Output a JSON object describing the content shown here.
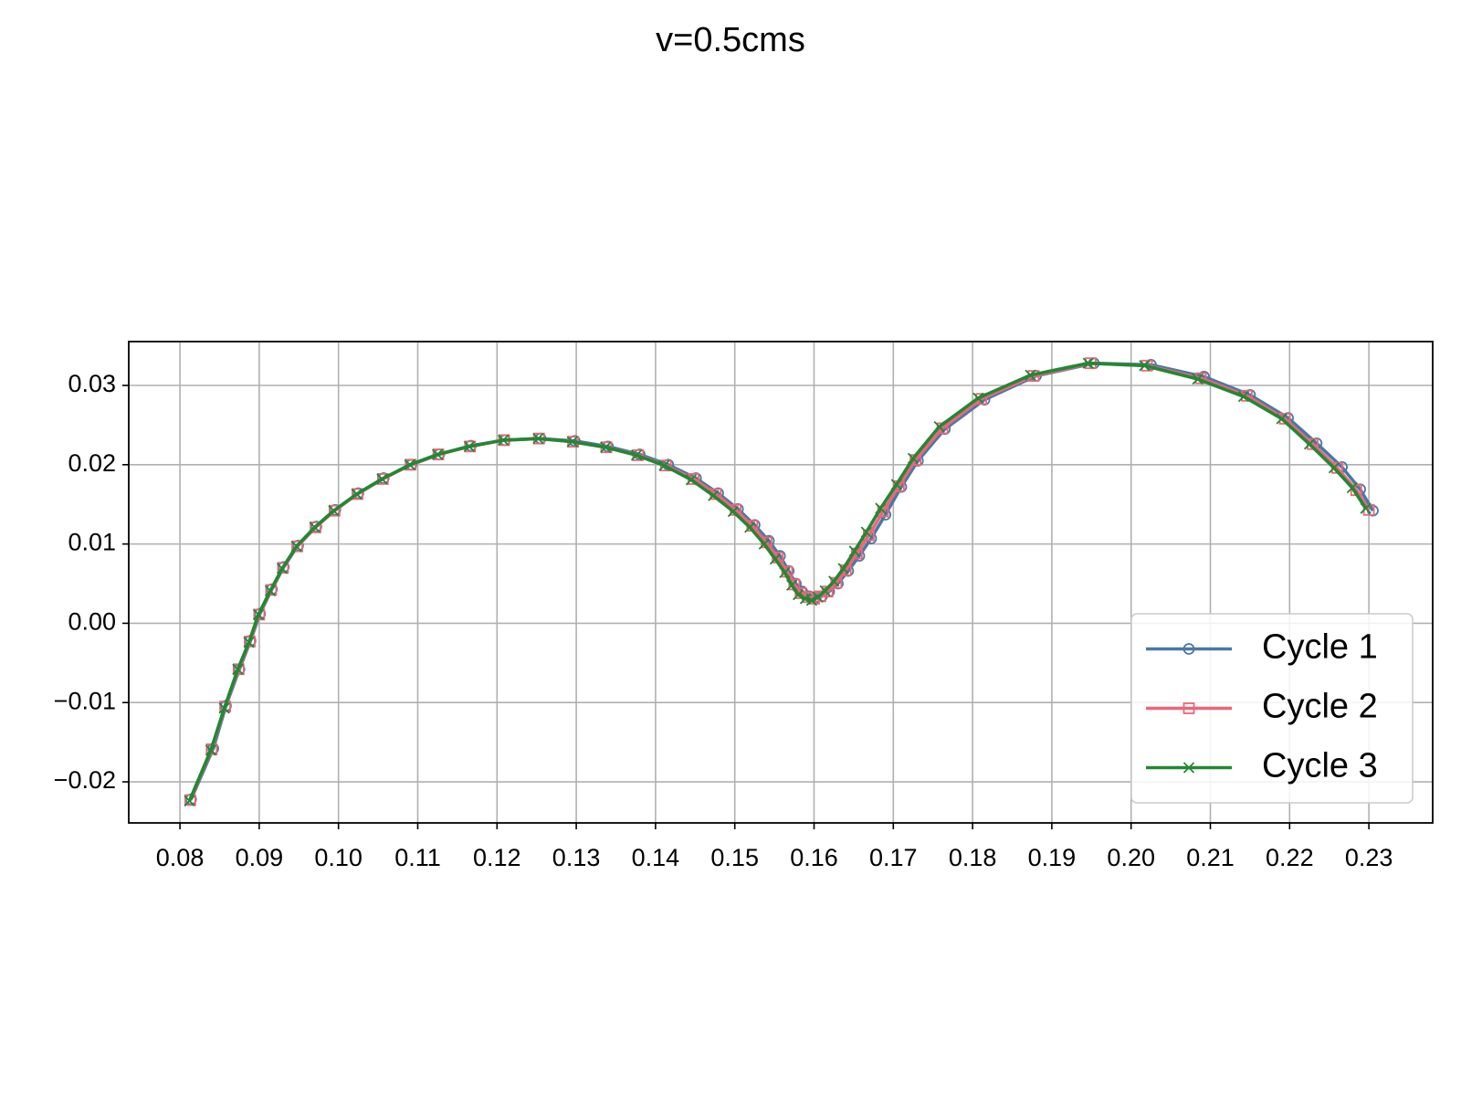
{
  "chart_data": {
    "type": "line",
    "title": "v=0.5cms",
    "grid": true,
    "legend": "lower right",
    "xlim": [
      0.07354,
      0.23805
    ],
    "ylim": [
      -0.02518,
      0.03553
    ],
    "xticks": [
      0.08,
      0.09,
      {
        "value": 0.1,
        "label": "0.10"
      },
      0.11,
      0.12,
      0.13,
      0.14,
      0.15,
      0.16,
      0.17,
      0.18,
      0.19,
      {
        "value": 0.2,
        "label": "0.20"
      },
      0.21,
      0.22,
      0.23
    ],
    "yticks": [
      {
        "value": -0.02,
        "label": "−0.02"
      },
      {
        "value": -0.01,
        "label": "−0.01"
      },
      {
        "value": 0,
        "label": "0.00"
      },
      0.01,
      0.02,
      0.03
    ],
    "series": [
      {
        "name": "Cycle 1",
        "color": "#4a78a8",
        "marker": "o",
        "x": [
          0.0814,
          0.0842,
          0.0858,
          0.0875,
          0.0889,
          0.0901,
          0.0916,
          0.0931,
          0.0949,
          0.0972,
          0.0996,
          0.1025,
          0.1057,
          0.1092,
          0.1127,
          0.1167,
          0.121,
          0.1255,
          0.1298,
          0.134,
          0.138,
          0.1416,
          0.1451,
          0.1479,
          0.1504,
          0.1525,
          0.1543,
          0.1557,
          0.1568,
          0.1577,
          0.1585,
          0.1594,
          0.1602,
          0.161,
          0.1619,
          0.163,
          0.1643,
          0.1657,
          0.1672,
          0.169,
          0.171,
          0.1731,
          0.1765,
          0.1815,
          0.188,
          0.1953,
          0.2025,
          0.2092,
          0.215,
          0.2198,
          0.2234,
          0.2266,
          0.2289,
          0.2305
        ],
        "values": [
          -0.0222,
          -0.0158,
          -0.0104,
          -0.0058,
          -0.0022,
          0.0012,
          0.0043,
          0.0071,
          0.0098,
          0.0122,
          0.0143,
          0.0164,
          0.0183,
          0.02,
          0.0213,
          0.0224,
          0.0231,
          0.0233,
          0.023,
          0.0223,
          0.0213,
          0.02,
          0.0183,
          0.0164,
          0.0144,
          0.0124,
          0.0104,
          0.0085,
          0.0066,
          0.005,
          0.004,
          0.0034,
          0.0032,
          0.0034,
          0.004,
          0.005,
          0.0066,
          0.0085,
          0.0107,
          0.0137,
          0.0172,
          0.0205,
          0.0245,
          0.0282,
          0.0312,
          0.0328,
          0.0326,
          0.0311,
          0.0288,
          0.0259,
          0.0227,
          0.0197,
          0.0169,
          0.0142
        ]
      },
      {
        "name": "Cycle 2",
        "color": "#ec6677",
        "marker": "s",
        "x": [
          0.0813,
          0.084,
          0.0857,
          0.0874,
          0.0888,
          0.09,
          0.0915,
          0.093,
          0.0948,
          0.0971,
          0.0995,
          0.1024,
          0.1056,
          0.1091,
          0.1126,
          0.1166,
          0.1209,
          0.1253,
          0.1296,
          0.1338,
          0.1378,
          0.1413,
          0.1448,
          0.1476,
          0.1501,
          0.1522,
          0.154,
          0.1554,
          0.1566,
          0.1575,
          0.1583,
          0.1592,
          0.16,
          0.1608,
          0.1617,
          0.1628,
          0.164,
          0.1654,
          0.1669,
          0.1687,
          0.1707,
          0.1728,
          0.1762,
          0.1811,
          0.1877,
          0.1949,
          0.202,
          0.2088,
          0.2146,
          0.2194,
          0.2229,
          0.226,
          0.2284,
          0.23
        ],
        "values": [
          -0.0223,
          -0.0159,
          -0.0105,
          -0.0058,
          -0.0023,
          0.0011,
          0.0042,
          0.007,
          0.0097,
          0.0121,
          0.0142,
          0.0163,
          0.0182,
          0.02,
          0.0213,
          0.0223,
          0.0231,
          0.0233,
          0.0229,
          0.0222,
          0.0212,
          0.0199,
          0.0182,
          0.0163,
          0.0143,
          0.0123,
          0.0102,
          0.0083,
          0.0065,
          0.0049,
          0.0038,
          0.0033,
          0.0031,
          0.0034,
          0.004,
          0.0051,
          0.0067,
          0.0088,
          0.0111,
          0.0141,
          0.0173,
          0.0206,
          0.0246,
          0.0283,
          0.0312,
          0.0328,
          0.0325,
          0.0309,
          0.0287,
          0.0258,
          0.0226,
          0.0196,
          0.0168,
          0.0143
        ]
      },
      {
        "name": "Cycle 3",
        "color": "#228833",
        "marker": "x",
        "x": [
          0.0812,
          0.0839,
          0.0856,
          0.0873,
          0.0887,
          0.0899,
          0.0914,
          0.0929,
          0.0947,
          0.097,
          0.0994,
          0.1023,
          0.1055,
          0.109,
          0.1125,
          0.1165,
          0.1208,
          0.1252,
          0.1295,
          0.1337,
          0.1376,
          0.1411,
          0.1445,
          0.1473,
          0.1498,
          0.1519,
          0.1537,
          0.1551,
          0.1563,
          0.1572,
          0.158,
          0.1589,
          0.1597,
          0.1605,
          0.1614,
          0.1625,
          0.1637,
          0.1651,
          0.1666,
          0.1684,
          0.1704,
          0.1725,
          0.1758,
          0.1807,
          0.1873,
          0.1946,
          0.2017,
          0.2084,
          0.2142,
          0.219,
          0.2225,
          0.2256,
          0.2279,
          0.2296
        ],
        "values": [
          -0.0224,
          -0.016,
          -0.0107,
          -0.0058,
          -0.0024,
          0.0011,
          0.0041,
          0.0069,
          0.0097,
          0.0121,
          0.0142,
          0.0163,
          0.0182,
          0.02,
          0.0213,
          0.0223,
          0.0231,
          0.0233,
          0.0229,
          0.0222,
          0.0212,
          0.0199,
          0.0181,
          0.0161,
          0.0141,
          0.0121,
          0.01,
          0.0081,
          0.0064,
          0.0048,
          0.0036,
          0.0031,
          0.0029,
          0.0033,
          0.0041,
          0.0053,
          0.0069,
          0.0091,
          0.0115,
          0.0145,
          0.0175,
          0.0208,
          0.0248,
          0.0284,
          0.0313,
          0.0328,
          0.0325,
          0.0308,
          0.0286,
          0.0258,
          0.0226,
          0.0196,
          0.0171,
          0.0145
        ]
      }
    ]
  }
}
